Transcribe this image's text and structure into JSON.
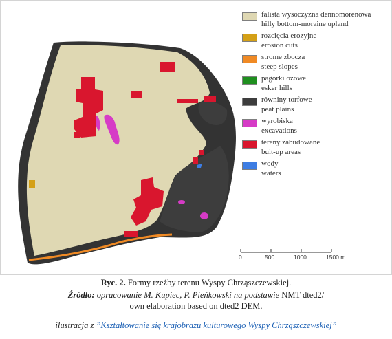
{
  "colors": {
    "upland": "#dfd8b3",
    "erosion": "#d4a017",
    "slopes": "#f08a24",
    "esker": "#1f8f1f",
    "peat": "#3d3d3d",
    "excavations": "#d63bc6",
    "builtup": "#d9162e",
    "waters": "#3d7de3"
  },
  "legend": [
    {
      "pl": "falista wysoczyzna dennomorenowa",
      "en": "hilly bottom-moraine upland",
      "color_key": "upland"
    },
    {
      "pl": "rozcięcia erozyjne",
      "en": "erosion cuts",
      "color_key": "erosion"
    },
    {
      "pl": "strome zbocza",
      "en": "steep slopes",
      "color_key": "slopes"
    },
    {
      "pl": "pagórki ozowe",
      "en": "esker hills",
      "color_key": "esker"
    },
    {
      "pl": "równiny torfowe",
      "en": "peat plains",
      "color_key": "peat"
    },
    {
      "pl": "wyrobiska",
      "en": "excavations",
      "color_key": "excavations"
    },
    {
      "pl": "tereny zabudowane",
      "en": "buit-up areas",
      "color_key": "builtup"
    },
    {
      "pl": "wody",
      "en": "waters",
      "color_key": "waters"
    }
  ],
  "scale": {
    "ticks": [
      "0",
      "500",
      "1000",
      "1500 m"
    ]
  },
  "caption": {
    "title_bold": "Ryc. 2.",
    "title_rest": " Formy rzeźby terenu Wyspy Chrząszczewskiej.",
    "source_bold": "Źródło:",
    "source_italic": " opracowanie M. Kupiec, P. Pieńkowski na podstawie",
    "source_plain": " NMT dted2/",
    "source_line2": "own elaboration based on dted2 DEM.",
    "credit_prefix": "ilustracja z ",
    "credit_link": "”Kształtowanie się krajobrazu kulturowego Wyspy Chrząszczewskiej”"
  }
}
